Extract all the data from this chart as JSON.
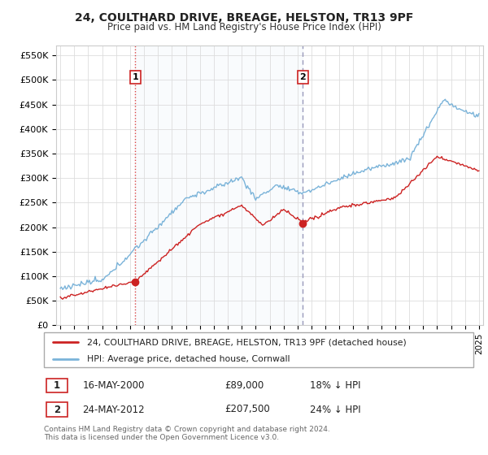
{
  "title": "24, COULTHARD DRIVE, BREAGE, HELSTON, TR13 9PF",
  "subtitle": "Price paid vs. HM Land Registry's House Price Index (HPI)",
  "ylabel_ticks": [
    "£0",
    "£50K",
    "£100K",
    "£150K",
    "£200K",
    "£250K",
    "£300K",
    "£350K",
    "£400K",
    "£450K",
    "£500K",
    "£550K"
  ],
  "ytick_values": [
    0,
    50000,
    100000,
    150000,
    200000,
    250000,
    300000,
    350000,
    400000,
    450000,
    500000,
    550000
  ],
  "ylim": [
    0,
    570000
  ],
  "xlim_start": 1994.7,
  "xlim_end": 2025.3,
  "sale1": {
    "year": 2000.37,
    "price": 89000,
    "label": "1",
    "date": "16-MAY-2000",
    "hpi_diff": "18% ↓ HPI"
  },
  "sale2": {
    "year": 2012.38,
    "price": 207500,
    "label": "2",
    "date": "24-MAY-2012",
    "hpi_diff": "24% ↓ HPI"
  },
  "property_line_color": "#cc2222",
  "hpi_line_color": "#7ab3d9",
  "sale_marker_color": "#cc2222",
  "vline1_color": "#dd6666",
  "vline2_color": "#9999bb",
  "legend_property": "24, COULTHARD DRIVE, BREAGE, HELSTON, TR13 9PF (detached house)",
  "legend_hpi": "HPI: Average price, detached house, Cornwall",
  "footnote": "Contains HM Land Registry data © Crown copyright and database right 2024.\nThis data is licensed under the Open Government Licence v3.0."
}
